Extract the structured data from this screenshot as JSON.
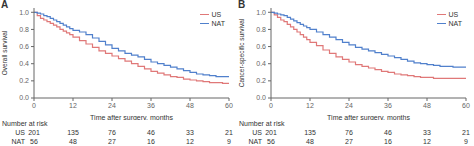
{
  "chart_data": [
    {
      "type": "step",
      "title": "A",
      "x_label": "Time after surgery, months",
      "y_label": "Overall survival",
      "x": [
        0,
        1,
        2,
        3,
        4,
        5,
        6,
        7,
        8,
        9,
        10,
        11,
        12,
        14,
        16,
        18,
        20,
        22,
        24,
        26,
        28,
        30,
        32,
        34,
        36,
        38,
        40,
        42,
        44,
        46,
        48,
        50,
        52,
        54,
        56,
        58,
        60
      ],
      "series": [
        {
          "name": "US",
          "color": "#e07878",
          "values": [
            1.0,
            0.96,
            0.93,
            0.91,
            0.89,
            0.87,
            0.85,
            0.83,
            0.8,
            0.78,
            0.76,
            0.74,
            0.71,
            0.67,
            0.63,
            0.59,
            0.55,
            0.52,
            0.49,
            0.46,
            0.43,
            0.4,
            0.37,
            0.34,
            0.31,
            0.29,
            0.27,
            0.25,
            0.24,
            0.22,
            0.21,
            0.2,
            0.19,
            0.18,
            0.18,
            0.17,
            0.17
          ]
        },
        {
          "name": "NAT",
          "color": "#5080cc",
          "values": [
            1.0,
            0.99,
            0.98,
            0.96,
            0.95,
            0.93,
            0.91,
            0.89,
            0.87,
            0.85,
            0.83,
            0.81,
            0.79,
            0.77,
            0.74,
            0.7,
            0.66,
            0.62,
            0.58,
            0.55,
            0.52,
            0.5,
            0.48,
            0.45,
            0.42,
            0.4,
            0.38,
            0.36,
            0.34,
            0.32,
            0.3,
            0.28,
            0.27,
            0.26,
            0.25,
            0.25,
            0.25
          ]
        }
      ],
      "xlim": [
        0,
        60
      ],
      "ylim": [
        0,
        1.05
      ],
      "xticks": [
        0,
        12,
        24,
        36,
        48,
        60
      ],
      "yticks": [
        {
          "value": 0,
          "label": "0.0"
        },
        0.2,
        0.4,
        0.6,
        0.8,
        {
          "value": 1.0,
          "label": "1.0"
        }
      ],
      "legend": "upper right",
      "risk_table": {
        "title": "Number at risk",
        "x": [
          0,
          12,
          24,
          36,
          48,
          60
        ],
        "rows": [
          {
            "name": "US",
            "values": [
              201,
              135,
              76,
              46,
              33,
              21
            ]
          },
          {
            "name": "NAT",
            "values": [
              56,
              48,
              27,
              16,
              12,
              9
            ]
          }
        ]
      }
    },
    {
      "type": "step",
      "title": "B",
      "x_label": "Time after surgery, months",
      "y_label": "Cancer-specific survival",
      "x": [
        0,
        1,
        2,
        3,
        4,
        5,
        6,
        7,
        8,
        9,
        10,
        11,
        12,
        14,
        16,
        18,
        20,
        22,
        24,
        26,
        28,
        30,
        32,
        34,
        36,
        38,
        40,
        42,
        44,
        46,
        48,
        50,
        52,
        54,
        56,
        58,
        60
      ],
      "series": [
        {
          "name": "US",
          "color": "#e07878",
          "values": [
            1.0,
            0.97,
            0.94,
            0.91,
            0.89,
            0.86,
            0.83,
            0.8,
            0.77,
            0.74,
            0.71,
            0.68,
            0.65,
            0.61,
            0.56,
            0.52,
            0.48,
            0.45,
            0.42,
            0.39,
            0.37,
            0.35,
            0.33,
            0.31,
            0.3,
            0.28,
            0.27,
            0.26,
            0.25,
            0.24,
            0.24,
            0.23,
            0.23,
            0.23,
            0.23,
            0.23,
            0.23
          ]
        },
        {
          "name": "NAT",
          "color": "#5080cc",
          "values": [
            1.0,
            0.99,
            0.98,
            0.97,
            0.96,
            0.94,
            0.92,
            0.9,
            0.88,
            0.86,
            0.84,
            0.82,
            0.8,
            0.77,
            0.74,
            0.71,
            0.68,
            0.65,
            0.62,
            0.59,
            0.57,
            0.55,
            0.53,
            0.51,
            0.49,
            0.47,
            0.45,
            0.43,
            0.41,
            0.4,
            0.39,
            0.38,
            0.37,
            0.37,
            0.36,
            0.36,
            0.36
          ]
        }
      ],
      "xlim": [
        0,
        60
      ],
      "ylim": [
        0,
        1.05
      ],
      "xticks": [
        0,
        12,
        24,
        36,
        48,
        60
      ],
      "yticks": [
        {
          "value": 0,
          "label": "0.0"
        },
        0.2,
        0.4,
        0.6,
        0.8,
        {
          "value": 1.0,
          "label": "1.0"
        }
      ],
      "legend": "upper right",
      "risk_table": {
        "title": "Number at risk",
        "x": [
          0,
          12,
          24,
          36,
          48,
          60
        ],
        "rows": [
          {
            "name": "US",
            "values": [
              201,
              135,
              76,
              46,
              33,
              21
            ]
          },
          {
            "name": "NAT",
            "values": [
              56,
              48,
              27,
              16,
              12,
              9
            ]
          }
        ]
      }
    }
  ]
}
